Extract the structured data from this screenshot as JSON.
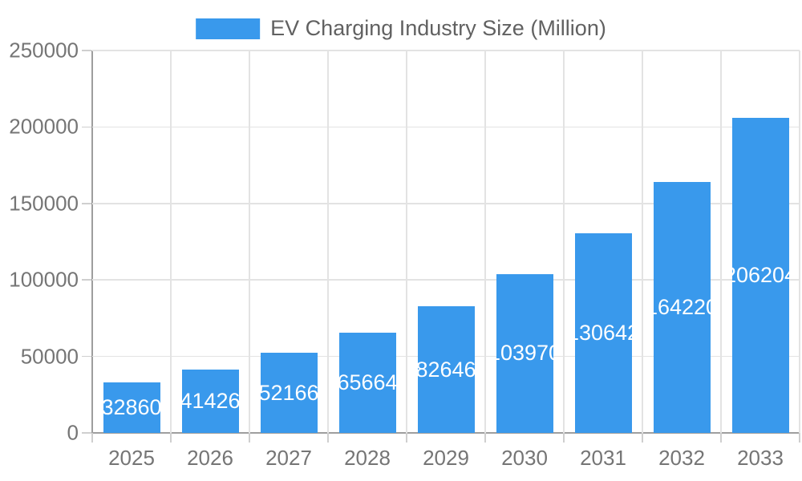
{
  "legend": {
    "label": "EV Charging Industry Size (Million)"
  },
  "chart_data": {
    "type": "bar",
    "title": "EV Charging Industry Size (Million)",
    "categories": [
      "2025",
      "2026",
      "2027",
      "2028",
      "2029",
      "2030",
      "2031",
      "2032",
      "2033"
    ],
    "series": [
      {
        "name": "EV Charging Industry Size (Million)",
        "values": [
          32860,
          41426,
          52166,
          65664,
          82646,
          103970,
          130642,
          164220,
          206204
        ]
      }
    ],
    "value_labels": [
      "32860",
      "41426",
      "52166",
      "65664",
      "82646",
      "103970",
      "130642",
      "164220",
      "206204"
    ],
    "xlabel": "",
    "ylabel": "",
    "ylim": [
      0,
      250000
    ],
    "yticks": [
      0,
      50000,
      100000,
      150000,
      200000,
      250000
    ],
    "ytick_labels": [
      "0",
      "50000",
      "100000",
      "150000",
      "200000",
      "250000"
    ],
    "grid": true,
    "legend_position": "top-center",
    "bar_color": "#3999EC",
    "value_label_color": "#FFFFFF",
    "grid_color": "#E3E3E3",
    "axis_line_color": "#9E9E9E",
    "tick_color": "#CFCFCF",
    "axis_text_color": "#757575",
    "legend_text_color": "#616161",
    "background_color": "#FFFFFF"
  }
}
